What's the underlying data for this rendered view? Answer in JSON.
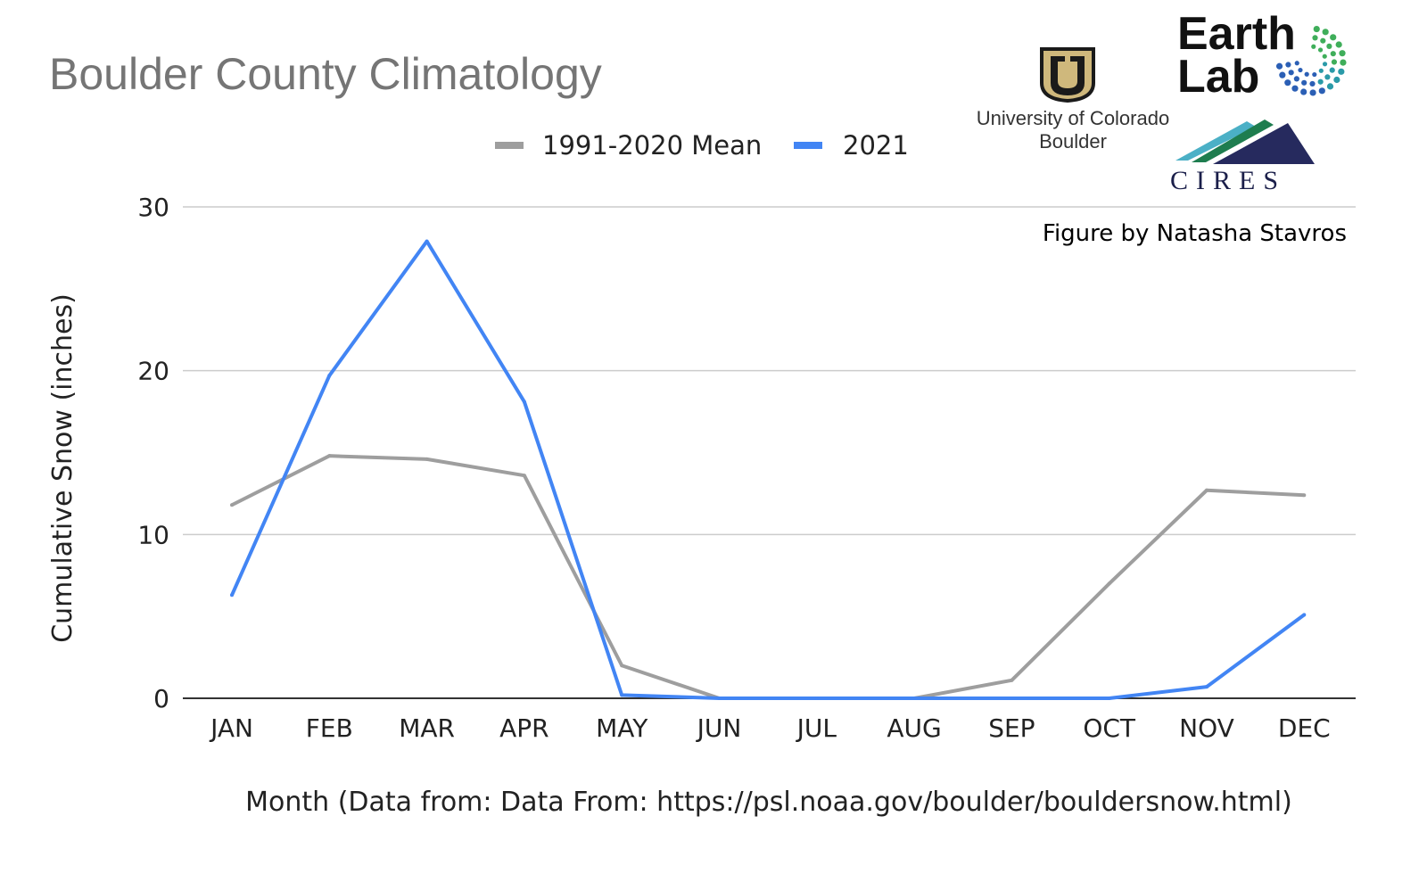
{
  "chart_data": {
    "type": "line",
    "title": "Boulder County Climatology",
    "xlabel": "Month (Data from: Data From: https://psl.noaa.gov/boulder/bouldersnow.html)",
    "ylabel": "Cumulative Snow (inches)",
    "categories": [
      "JAN",
      "FEB",
      "MAR",
      "APR",
      "MAY",
      "JUN",
      "JUL",
      "AUG",
      "SEP",
      "OCT",
      "NOV",
      "DEC"
    ],
    "ylim": [
      0,
      30
    ],
    "yticks": [
      0,
      10,
      20,
      30
    ],
    "grid": true,
    "legend_position": "top",
    "series": [
      {
        "name": "1991-2020 Mean",
        "color": "#9e9e9e",
        "values": [
          11.8,
          14.8,
          14.6,
          13.6,
          2.0,
          0.0,
          0.0,
          0.0,
          1.1,
          7.0,
          12.7,
          12.4
        ]
      },
      {
        "name": "2021",
        "color": "#4285f4",
        "values": [
          6.3,
          19.7,
          27.9,
          18.1,
          0.2,
          0.0,
          0.0,
          0.0,
          0.0,
          0.0,
          0.7,
          5.1
        ]
      }
    ]
  },
  "credit": "Figure by Natasha Stavros",
  "logos": {
    "cu": {
      "line1": "University of Colorado",
      "line2": "Boulder",
      "color": "#cfb87c"
    },
    "earthlab": {
      "line1": "Earth",
      "line2": "Lab"
    },
    "cires": {
      "text": "CIRES"
    }
  }
}
